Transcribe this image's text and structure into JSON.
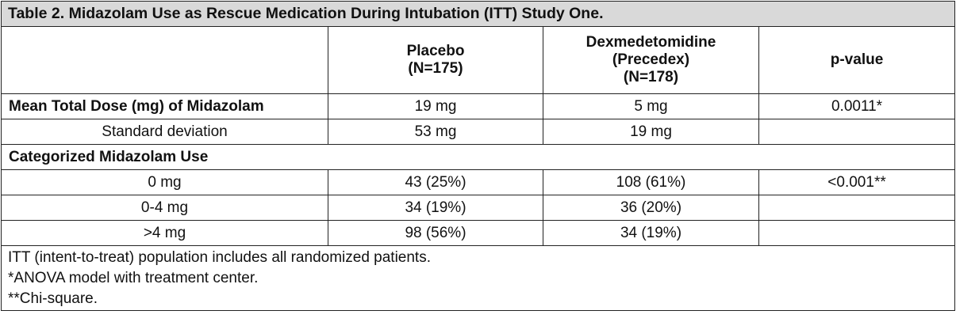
{
  "table": {
    "title": "Table 2. Midazolam Use as Rescue Medication During Intubation (ITT) Study One.",
    "headers": {
      "col1": "",
      "col2": [
        "Placebo",
        "(N=175)"
      ],
      "col3": [
        "Dexmedetomidine",
        "(Precedex)",
        "(N=178)"
      ],
      "col4": "p-value"
    },
    "rows": {
      "mean_dose": {
        "label": "Mean Total Dose (mg) of Midazolam",
        "placebo": "19 mg",
        "dex": "5 mg",
        "pvalue": "0.0011*"
      },
      "std_dev": {
        "label": "Standard deviation",
        "placebo": "53 mg",
        "dex": "19 mg",
        "pvalue": ""
      },
      "section_label": "Categorized Midazolam Use",
      "zero_mg": {
        "label": "0 mg",
        "placebo": "43 (25%)",
        "dex": "108 (61%)",
        "pvalue": "<0.001**"
      },
      "zero_four_mg": {
        "label": "0-4 mg",
        "placebo": "34 (19%)",
        "dex": "36 (20%)",
        "pvalue": ""
      },
      "over_four_mg": {
        "label": ">4 mg",
        "placebo": "98 (56%)",
        "dex": "34 (19%)",
        "pvalue": ""
      }
    },
    "footnotes": [
      "ITT (intent-to-treat) population includes all randomized patients.",
      "*ANOVA model with treatment center.",
      "**Chi-square."
    ]
  }
}
